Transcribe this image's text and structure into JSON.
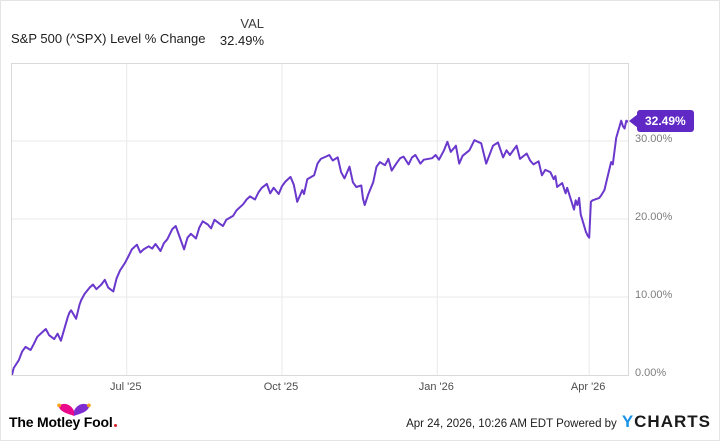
{
  "header": {
    "title": "S&P 500 (^SPX) Level % Change",
    "col_label": "VAL",
    "col_value": "32.49%"
  },
  "badge": {
    "label": "32.49%"
  },
  "footer": {
    "brand": "The Motley Fool",
    "timestamp_powered": "Apr 24, 2026, 10:26 AM EDT Powered by",
    "provider_y": "Y",
    "provider_rest": "CHARTS"
  },
  "colors": {
    "line": "#6a38cc",
    "badge_bg": "#6028c4",
    "grid": "#e9e9e9",
    "plot_border": "#d9d9d9",
    "axis_text": "#7d7d7d",
    "brand_pink": "#e9098a",
    "brand_purple": "#7e2bd0",
    "brand_yellow": "#f6a11c",
    "ycharts_blue": "#1792e8"
  },
  "chart_data": {
    "type": "line",
    "title": "S&P 500 (^SPX) Level % Change",
    "legend": "none",
    "grid": true,
    "x_axis": {
      "type": "date",
      "range": [
        "2025-04-24",
        "2026-04-24"
      ],
      "ticks": [
        {
          "date": "2025-07-01",
          "label": "Jul '25"
        },
        {
          "date": "2025-10-01",
          "label": "Oct '25"
        },
        {
          "date": "2026-01-01",
          "label": "Jan '26"
        },
        {
          "date": "2026-04-01",
          "label": "Apr '26"
        }
      ]
    },
    "y_axis": {
      "unit": "%",
      "range": [
        0,
        39.87
      ],
      "ticks": [
        {
          "value": 30,
          "label": "30.00%"
        },
        {
          "value": 20,
          "label": "20.00%"
        },
        {
          "value": 10,
          "label": "10.00%"
        },
        {
          "value": 0,
          "label": "0.00%"
        }
      ]
    },
    "series": [
      {
        "name": "S&P 500 (^SPX) Level % Change",
        "color": "#6a38cc",
        "last_value": 32.49,
        "points": [
          [
            "2025-04-24",
            0.0
          ],
          [
            "2025-04-25",
            0.9
          ],
          [
            "2025-04-28",
            1.9
          ],
          [
            "2025-04-30",
            3.0
          ],
          [
            "2025-05-02",
            3.6
          ],
          [
            "2025-05-05",
            3.2
          ],
          [
            "2025-05-07",
            4.0
          ],
          [
            "2025-05-09",
            4.9
          ],
          [
            "2025-05-12",
            5.5
          ],
          [
            "2025-05-14",
            5.9
          ],
          [
            "2025-05-16",
            5.1
          ],
          [
            "2025-05-19",
            4.6
          ],
          [
            "2025-05-21",
            5.3
          ],
          [
            "2025-05-23",
            4.4
          ],
          [
            "2025-05-27",
            7.4
          ],
          [
            "2025-05-28",
            8.0
          ],
          [
            "2025-05-29",
            8.3
          ],
          [
            "2025-06-01",
            7.2
          ],
          [
            "2025-06-03",
            9.0
          ],
          [
            "2025-06-04",
            9.6
          ],
          [
            "2025-06-06",
            10.4
          ],
          [
            "2025-06-09",
            11.2
          ],
          [
            "2025-06-11",
            11.6
          ],
          [
            "2025-06-13",
            11.0
          ],
          [
            "2025-06-16",
            11.6
          ],
          [
            "2025-06-18",
            12.2
          ],
          [
            "2025-06-20",
            11.2
          ],
          [
            "2025-06-23",
            10.7
          ],
          [
            "2025-06-25",
            12.4
          ],
          [
            "2025-06-27",
            13.4
          ],
          [
            "2025-06-30",
            14.4
          ],
          [
            "2025-07-02",
            15.2
          ],
          [
            "2025-07-04",
            16.1
          ],
          [
            "2025-07-07",
            16.7
          ],
          [
            "2025-07-09",
            15.7
          ],
          [
            "2025-07-11",
            16.1
          ],
          [
            "2025-07-14",
            16.5
          ],
          [
            "2025-07-16",
            16.2
          ],
          [
            "2025-07-18",
            16.8
          ],
          [
            "2025-07-21",
            15.9
          ],
          [
            "2025-07-23",
            16.9
          ],
          [
            "2025-07-25",
            17.4
          ],
          [
            "2025-07-28",
            18.7
          ],
          [
            "2025-07-30",
            19.1
          ],
          [
            "2025-08-01",
            17.9
          ],
          [
            "2025-08-04",
            16.1
          ],
          [
            "2025-08-06",
            17.6
          ],
          [
            "2025-08-08",
            18.1
          ],
          [
            "2025-08-11",
            17.5
          ],
          [
            "2025-08-13",
            18.9
          ],
          [
            "2025-08-15",
            19.7
          ],
          [
            "2025-08-18",
            19.3
          ],
          [
            "2025-08-20",
            18.8
          ],
          [
            "2025-08-22",
            19.9
          ],
          [
            "2025-08-25",
            19.4
          ],
          [
            "2025-08-27",
            19.1
          ],
          [
            "2025-08-29",
            19.9
          ],
          [
            "2025-09-02",
            20.4
          ],
          [
            "2025-09-04",
            21.1
          ],
          [
            "2025-09-08",
            21.9
          ],
          [
            "2025-09-10",
            22.5
          ],
          [
            "2025-09-12",
            22.9
          ],
          [
            "2025-09-15",
            22.5
          ],
          [
            "2025-09-17",
            23.4
          ],
          [
            "2025-09-19",
            24.0
          ],
          [
            "2025-09-22",
            24.5
          ],
          [
            "2025-09-24",
            23.3
          ],
          [
            "2025-09-26",
            24.0
          ],
          [
            "2025-09-29",
            23.2
          ],
          [
            "2025-10-01",
            24.2
          ],
          [
            "2025-10-03",
            24.8
          ],
          [
            "2025-10-06",
            25.4
          ],
          [
            "2025-10-08",
            24.4
          ],
          [
            "2025-10-10",
            22.2
          ],
          [
            "2025-10-13",
            23.7
          ],
          [
            "2025-10-14",
            23.2
          ],
          [
            "2025-10-16",
            25.1
          ],
          [
            "2025-10-20",
            25.6
          ],
          [
            "2025-10-22",
            27.1
          ],
          [
            "2025-10-24",
            27.7
          ],
          [
            "2025-10-27",
            28.0
          ],
          [
            "2025-10-29",
            28.2
          ],
          [
            "2025-10-31",
            27.5
          ],
          [
            "2025-11-03",
            27.9
          ],
          [
            "2025-11-05",
            26.0
          ],
          [
            "2025-11-07",
            25.2
          ],
          [
            "2025-11-10",
            26.7
          ],
          [
            "2025-11-12",
            24.7
          ],
          [
            "2025-11-14",
            24.1
          ],
          [
            "2025-11-17",
            24.3
          ],
          [
            "2025-11-18",
            22.6
          ],
          [
            "2025-11-19",
            21.8
          ],
          [
            "2025-11-21",
            23.1
          ],
          [
            "2025-11-24",
            24.7
          ],
          [
            "2025-11-26",
            26.7
          ],
          [
            "2025-11-28",
            27.3
          ],
          [
            "2025-12-01",
            26.9
          ],
          [
            "2025-12-03",
            27.7
          ],
          [
            "2025-12-05",
            26.2
          ],
          [
            "2025-12-08",
            27.2
          ],
          [
            "2025-12-10",
            27.8
          ],
          [
            "2025-12-12",
            28.0
          ],
          [
            "2025-12-15",
            27.0
          ],
          [
            "2025-12-17",
            27.9
          ],
          [
            "2025-12-19",
            28.2
          ],
          [
            "2025-12-22",
            27.1
          ],
          [
            "2025-12-24",
            27.6
          ],
          [
            "2025-12-29",
            27.8
          ],
          [
            "2025-12-31",
            28.2
          ],
          [
            "2026-01-02",
            27.6
          ],
          [
            "2026-01-05",
            28.8
          ],
          [
            "2026-01-07",
            29.9
          ],
          [
            "2026-01-09",
            28.6
          ],
          [
            "2026-01-12",
            29.4
          ],
          [
            "2026-01-14",
            27.1
          ],
          [
            "2026-01-16",
            28.1
          ],
          [
            "2026-01-20",
            28.8
          ],
          [
            "2026-01-23",
            30.1
          ],
          [
            "2026-01-27",
            29.7
          ],
          [
            "2026-01-30",
            27.1
          ],
          [
            "2026-02-03",
            29.4
          ],
          [
            "2026-02-06",
            29.8
          ],
          [
            "2026-02-09",
            27.9
          ],
          [
            "2026-02-11",
            28.8
          ],
          [
            "2026-02-13",
            28.2
          ],
          [
            "2026-02-17",
            29.4
          ],
          [
            "2026-02-19",
            27.7
          ],
          [
            "2026-02-23",
            28.4
          ],
          [
            "2026-02-25",
            27.5
          ],
          [
            "2026-02-27",
            27.0
          ],
          [
            "2026-03-02",
            27.4
          ],
          [
            "2026-03-04",
            25.6
          ],
          [
            "2026-03-06",
            26.3
          ],
          [
            "2026-03-09",
            26.0
          ],
          [
            "2026-03-11",
            25.1
          ],
          [
            "2026-03-12",
            25.5
          ],
          [
            "2026-03-13",
            24.1
          ],
          [
            "2026-03-16",
            24.6
          ],
          [
            "2026-03-18",
            23.3
          ],
          [
            "2026-03-19",
            24.0
          ],
          [
            "2026-03-23",
            21.2
          ],
          [
            "2026-03-24",
            22.4
          ],
          [
            "2026-03-25",
            21.8
          ],
          [
            "2026-03-26",
            22.7
          ],
          [
            "2026-03-27",
            20.6
          ],
          [
            "2026-03-30",
            18.4
          ],
          [
            "2026-03-31",
            17.9
          ],
          [
            "2026-04-01",
            17.6
          ],
          [
            "2026-04-02",
            22.2
          ],
          [
            "2026-04-03",
            22.4
          ],
          [
            "2026-04-07",
            22.7
          ],
          [
            "2026-04-08",
            23.0
          ],
          [
            "2026-04-10",
            23.7
          ],
          [
            "2026-04-13",
            26.4
          ],
          [
            "2026-04-14",
            27.3
          ],
          [
            "2026-04-15",
            27.0
          ],
          [
            "2026-04-16",
            28.7
          ],
          [
            "2026-04-17",
            30.4
          ],
          [
            "2026-04-20",
            32.6
          ],
          [
            "2026-04-21",
            31.9
          ],
          [
            "2026-04-22",
            31.6
          ],
          [
            "2026-04-23",
            32.6
          ],
          [
            "2026-04-24",
            32.49
          ]
        ]
      }
    ]
  }
}
